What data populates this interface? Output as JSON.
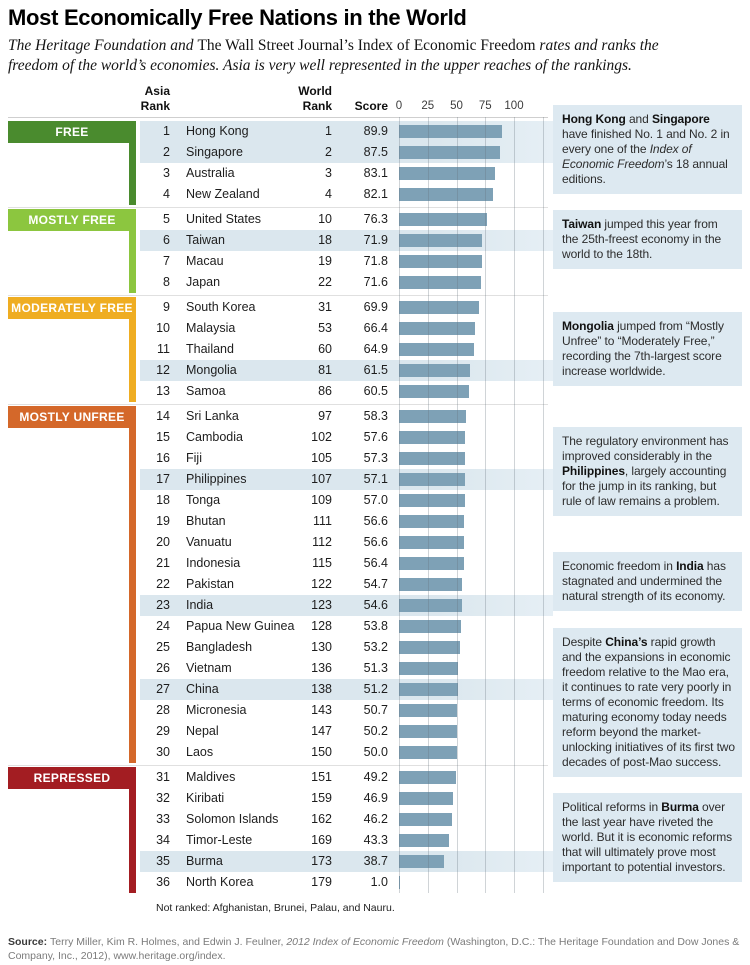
{
  "title": "Most Economically Free Nations in the World",
  "subtitle_segments": [
    {
      "t": "The Heritage Foundation and ",
      "i": 1
    },
    {
      "t": "The Wall Street Journal’s Index of Economic Freedom",
      "r": 1
    },
    {
      "t": " rates and ranks the",
      "i": 1
    },
    {
      "br": 1
    },
    {
      "t": "freedom of the world’s economies.  Asia is very well represented in the upper reaches of the rankings.",
      "i": 1
    }
  ],
  "columns": {
    "asia": [
      "Asia",
      "Rank"
    ],
    "world": [
      "World",
      "Rank"
    ],
    "score": "Score"
  },
  "freedom_levels": [
    {
      "id": "free",
      "label": "FREE",
      "color": "#4a8b2e"
    },
    {
      "id": "mostly_free",
      "label": "MOSTLY FREE",
      "color": "#8cc63f"
    },
    {
      "id": "moderately_free",
      "label": "MODERATELY FREE",
      "color": "#efad22"
    },
    {
      "id": "mostly_unfree",
      "label": "MOSTLY UNFREE",
      "color": "#d4682a"
    },
    {
      "id": "repressed",
      "label": "REPRESSED",
      "color": "#a31d22"
    }
  ],
  "theme": {
    "bar_color": "#7ea1b6",
    "row_highlight": "#dbe7ee",
    "callout_bg": "#dde9f1"
  },
  "chart_data": {
    "type": "bar",
    "orientation": "horizontal",
    "title": "Most Economically Free Nations in the World",
    "xlabel": "Score",
    "xlim": [
      0,
      100
    ],
    "xticks": [
      0,
      25,
      50,
      75,
      100
    ],
    "grid": true,
    "categories": [
      "Hong Kong",
      "Singapore",
      "Australia",
      "New Zealand",
      "United States",
      "Taiwan",
      "Macau",
      "Japan",
      "South Korea",
      "Malaysia",
      "Thailand",
      "Mongolia",
      "Samoa",
      "Sri Lanka",
      "Cambodia",
      "Fiji",
      "Philippines",
      "Tonga",
      "Bhutan",
      "Vanuatu",
      "Indonesia",
      "Pakistan",
      "India",
      "Papua New Guinea",
      "Bangladesh",
      "Vietnam",
      "China",
      "Micronesia",
      "Nepal",
      "Laos",
      "Maldives",
      "Kiribati",
      "Solomon Islands",
      "Timor-Leste",
      "Burma",
      "North Korea"
    ],
    "values": [
      89.9,
      87.5,
      83.1,
      82.1,
      76.3,
      71.9,
      71.8,
      71.6,
      69.9,
      66.4,
      64.9,
      61.5,
      60.5,
      58.3,
      57.6,
      57.3,
      57.1,
      57.0,
      56.6,
      56.6,
      56.4,
      54.7,
      54.6,
      53.8,
      53.2,
      51.3,
      51.2,
      50.7,
      50.2,
      50.0,
      49.2,
      46.9,
      46.2,
      43.3,
      38.7,
      1.0
    ],
    "value_labels": [
      "89.9",
      "87.5",
      "83.1",
      "82.1",
      "76.3",
      "71.9",
      "71.8",
      "71.6",
      "69.9",
      "66.4",
      "64.9",
      "61.5",
      "60.5",
      "58.3",
      "57.6",
      "57.3",
      "57.1",
      "57.0",
      "56.6",
      "56.6",
      "56.4",
      "54.7",
      "54.6",
      "53.8",
      "53.2",
      "51.3",
      "51.2",
      "50.7",
      "50.2",
      "50.0",
      "49.2",
      "46.9",
      "46.2",
      "43.3",
      "38.7",
      "1.0"
    ],
    "asia_ranks": [
      1,
      2,
      3,
      4,
      5,
      6,
      7,
      8,
      9,
      10,
      11,
      12,
      13,
      14,
      15,
      16,
      17,
      18,
      19,
      20,
      21,
      22,
      23,
      24,
      25,
      26,
      27,
      28,
      29,
      30,
      31,
      32,
      33,
      34,
      35,
      36
    ],
    "world_ranks": [
      1,
      2,
      3,
      4,
      10,
      18,
      19,
      22,
      31,
      53,
      60,
      81,
      86,
      97,
      102,
      105,
      107,
      109,
      111,
      112,
      115,
      122,
      123,
      128,
      130,
      136,
      138,
      143,
      147,
      150,
      151,
      159,
      162,
      169,
      173,
      179
    ],
    "groups": [
      "free",
      "free",
      "free",
      "free",
      "mostly_free",
      "mostly_free",
      "mostly_free",
      "mostly_free",
      "moderately_free",
      "moderately_free",
      "moderately_free",
      "moderately_free",
      "moderately_free",
      "mostly_unfree",
      "mostly_unfree",
      "mostly_unfree",
      "mostly_unfree",
      "mostly_unfree",
      "mostly_unfree",
      "mostly_unfree",
      "mostly_unfree",
      "mostly_unfree",
      "mostly_unfree",
      "mostly_unfree",
      "mostly_unfree",
      "mostly_unfree",
      "mostly_unfree",
      "mostly_unfree",
      "mostly_unfree",
      "mostly_unfree",
      "repressed",
      "repressed",
      "repressed",
      "repressed",
      "repressed",
      "repressed"
    ],
    "highlighted": [
      1,
      1,
      0,
      0,
      0,
      1,
      0,
      0,
      0,
      0,
      0,
      1,
      0,
      0,
      0,
      0,
      1,
      0,
      0,
      0,
      0,
      0,
      1,
      0,
      0,
      0,
      1,
      0,
      0,
      0,
      0,
      0,
      0,
      0,
      1,
      0
    ]
  },
  "callouts": [
    {
      "id": "hong-kong-singapore",
      "segments": [
        {
          "t": "Hong Kong",
          "b": 1
        },
        {
          "t": " and "
        },
        {
          "t": "Singapore",
          "b": 1
        },
        {
          "t": " have finished No. 1 and No. 2 in every one of the "
        },
        {
          "t": "Index of Economic Freedom",
          "i": 1
        },
        {
          "t": "’s 18 annual editions."
        }
      ]
    },
    {
      "id": "taiwan",
      "segments": [
        {
          "t": "Taiwan",
          "b": 1
        },
        {
          "t": " jumped this year from the 25th-freest economy in the world to the 18th."
        }
      ]
    },
    {
      "id": "mongolia",
      "segments": [
        {
          "t": "Mongolia",
          "b": 1
        },
        {
          "t": " jumped from “Mostly Unfree” to “Moderately Free,” recording the 7th-largest score increase worldwide."
        }
      ]
    },
    {
      "id": "philippines",
      "segments": [
        {
          "t": "The regulatory environment has improved considerably in the "
        },
        {
          "t": "Philippines",
          "b": 1
        },
        {
          "t": ", largely accounting for the jump in its ranking, but rule of law remains a problem."
        }
      ]
    },
    {
      "id": "india",
      "segments": [
        {
          "t": "Economic freedom in "
        },
        {
          "t": "India",
          "b": 1
        },
        {
          "t": " has stagnated and undermined the natural strength of its economy."
        }
      ]
    },
    {
      "id": "china",
      "segments": [
        {
          "t": "Despite "
        },
        {
          "t": "China’s",
          "b": 1
        },
        {
          "t": " rapid growth and the expansions in economic freedom relative to the Mao era, it continues to rate very poorly in terms of economic freedom. Its maturing economy today needs reform beyond the market-unlocking initiatives of its first two decades of post-Mao success."
        }
      ]
    },
    {
      "id": "burma",
      "segments": [
        {
          "t": "Political reforms in "
        },
        {
          "t": "Burma",
          "b": 1
        },
        {
          "t": " over the last year have riveted the world. But it is economic reforms that will ultimately prove most important to potential investors."
        }
      ]
    }
  ],
  "footnote": "Not ranked: Afghanistan, Brunei, Palau, and Nauru.",
  "source_segments": [
    {
      "t": "Source: ",
      "b": 1
    },
    {
      "t": "Terry Miller, Kim R. Holmes, and Edwin J. Feulner, "
    },
    {
      "t": "2012 Index of Economic Freedom",
      "i": 1
    },
    {
      "t": " (Washington, D.C.: The Heritage Foundation and Dow Jones & Company, Inc., 2012), www.heritage.org/index."
    }
  ]
}
